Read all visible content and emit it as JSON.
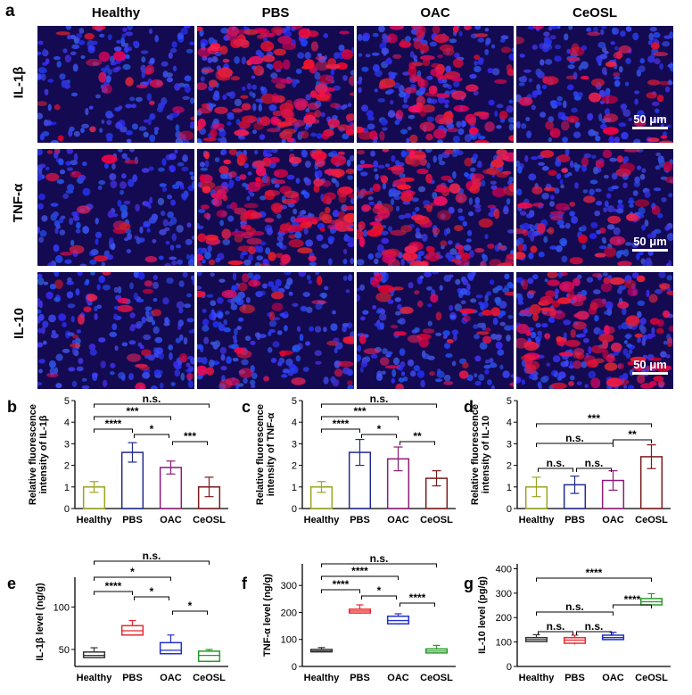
{
  "panel_letters": {
    "a": "a",
    "b": "b",
    "c": "c",
    "d": "d",
    "e": "e",
    "f": "f",
    "g": "g"
  },
  "groups": [
    "Healthy",
    "PBS",
    "OAC",
    "CeOSL"
  ],
  "markers": [
    "IL-1β",
    "TNF-α",
    "IL-10"
  ],
  "scale_bar": "50 μm",
  "microscopy_intensity": {
    "IL-1β": [
      0.15,
      0.85,
      0.55,
      0.25
    ],
    "TNF-α": [
      0.1,
      0.85,
      0.75,
      0.3
    ],
    "IL-10": [
      0.15,
      0.2,
      0.25,
      0.75
    ]
  },
  "colors": {
    "Healthy": "#9aa61f",
    "PBS": "#1f2b8c",
    "OAC": "#8b1a7a",
    "CeOSL": "#7a1a1a",
    "box_Healthy": "#333333",
    "box_PBS": "#e8292e",
    "box_OAC": "#2130c8",
    "box_CeOSL": "#2a9a2a"
  },
  "chart_data": [
    {
      "panel": "b",
      "type": "bar",
      "categories": [
        "Healthy",
        "PBS",
        "OAC",
        "CeOSL"
      ],
      "values": [
        1.0,
        2.6,
        1.9,
        1.0
      ],
      "errors": [
        0.25,
        0.45,
        0.3,
        0.45
      ],
      "ylabel": "Relative fluorescence intensity of IL-1β",
      "ylim": [
        0,
        5
      ],
      "yticks": [
        "0",
        "1",
        "2",
        "3",
        "4",
        "5"
      ],
      "significance": [
        {
          "from": 0,
          "to": 3,
          "label": "n.s."
        },
        {
          "from": 0,
          "to": 2,
          "label": "***"
        },
        {
          "from": 0,
          "to": 1,
          "label": "****"
        },
        {
          "from": 1,
          "to": 2,
          "label": "*"
        },
        {
          "from": 2,
          "to": 3,
          "label": "***"
        }
      ]
    },
    {
      "panel": "c",
      "type": "bar",
      "categories": [
        "Healthy",
        "PBS",
        "OAC",
        "CeOSL"
      ],
      "values": [
        1.0,
        2.6,
        2.3,
        1.4
      ],
      "errors": [
        0.25,
        0.6,
        0.55,
        0.35
      ],
      "ylabel": "Relative fluorescence intensity of TNF-α",
      "ylim": [
        0,
        5
      ],
      "yticks": [
        "0",
        "1",
        "2",
        "3",
        "4",
        "5"
      ],
      "significance": [
        {
          "from": 0,
          "to": 3,
          "label": "n.s."
        },
        {
          "from": 0,
          "to": 2,
          "label": "***"
        },
        {
          "from": 0,
          "to": 1,
          "label": "****"
        },
        {
          "from": 1,
          "to": 2,
          "label": "*"
        },
        {
          "from": 2,
          "to": 3,
          "label": "**"
        }
      ]
    },
    {
      "panel": "d",
      "type": "bar",
      "categories": [
        "Healthy",
        "PBS",
        "OAC",
        "CeOSL"
      ],
      "values": [
        1.0,
        1.1,
        1.3,
        2.4
      ],
      "errors": [
        0.45,
        0.4,
        0.45,
        0.55
      ],
      "ylabel": "Relative fluorescence intensity of IL-10",
      "ylim": [
        0,
        5
      ],
      "yticks": [
        "0",
        "1",
        "2",
        "3",
        "4",
        "5"
      ],
      "significance": [
        {
          "from": 0,
          "to": 3,
          "label": "***"
        },
        {
          "from": 0,
          "to": 2,
          "label": "n.s."
        },
        {
          "from": 2,
          "to": 3,
          "label": "**"
        },
        {
          "from": 0,
          "to": 1,
          "label": "n.s."
        },
        {
          "from": 1,
          "to": 2,
          "label": "n.s."
        }
      ]
    },
    {
      "panel": "e",
      "type": "box",
      "categories": [
        "Healthy",
        "PBS",
        "OAC",
        "CeOSL"
      ],
      "boxes": [
        {
          "min": 40,
          "q1": 40.5,
          "median": 43,
          "q3": 47,
          "max": 52
        },
        {
          "min": 67,
          "q1": 67,
          "median": 72,
          "q3": 78,
          "max": 84
        },
        {
          "min": 44,
          "q1": 45,
          "median": 49,
          "q3": 58,
          "max": 67
        },
        {
          "min": 35,
          "q1": 36,
          "median": 43,
          "q3": 48,
          "max": 50
        }
      ],
      "ylabel": "IL-1β level (ng/g)",
      "ylim": [
        30,
        135
      ],
      "yticks": [
        "50",
        "100"
      ],
      "ytick_values": [
        50,
        100
      ],
      "significance": [
        {
          "from": 0,
          "to": 3,
          "label": "n.s."
        },
        {
          "from": 0,
          "to": 2,
          "label": "*"
        },
        {
          "from": 0,
          "to": 1,
          "label": "****"
        },
        {
          "from": 1,
          "to": 2,
          "label": "*"
        },
        {
          "from": 2,
          "to": 3,
          "label": "*"
        }
      ]
    },
    {
      "panel": "f",
      "type": "box",
      "categories": [
        "Healthy",
        "PBS",
        "OAC",
        "CeOSL"
      ],
      "boxes": [
        {
          "min": 52,
          "q1": 54,
          "median": 57,
          "q3": 63,
          "max": 70
        },
        {
          "min": 195,
          "q1": 198,
          "median": 205,
          "q3": 212,
          "max": 228
        },
        {
          "min": 155,
          "q1": 158,
          "median": 170,
          "q3": 186,
          "max": 195
        },
        {
          "min": 48,
          "q1": 50,
          "median": 57,
          "q3": 65,
          "max": 78
        }
      ],
      "ylabel": "TNF-α level (ng/g)",
      "ylim": [
        0,
        380
      ],
      "yticks": [
        "0",
        "100",
        "200",
        "300"
      ],
      "ytick_values": [
        0,
        100,
        200,
        300
      ],
      "significance": [
        {
          "from": 0,
          "to": 3,
          "label": "n.s."
        },
        {
          "from": 0,
          "to": 2,
          "label": "****"
        },
        {
          "from": 0,
          "to": 1,
          "label": "****"
        },
        {
          "from": 1,
          "to": 2,
          "label": "*"
        },
        {
          "from": 2,
          "to": 3,
          "label": "****"
        }
      ]
    },
    {
      "panel": "g",
      "type": "box",
      "categories": [
        "Healthy",
        "PBS",
        "OAC",
        "CeOSL"
      ],
      "boxes": [
        {
          "min": 100,
          "q1": 102,
          "median": 110,
          "q3": 118,
          "max": 130
        },
        {
          "min": 90,
          "q1": 95,
          "median": 108,
          "q3": 118,
          "max": 128
        },
        {
          "min": 110,
          "q1": 110,
          "median": 118,
          "q3": 128,
          "max": 140
        },
        {
          "min": 250,
          "q1": 252,
          "median": 265,
          "q3": 278,
          "max": 298
        }
      ],
      "ylabel": "IL-10 level (pg/g)",
      "ylim": [
        0,
        420
      ],
      "yticks": [
        "0",
        "100",
        "200",
        "300",
        "400"
      ],
      "ytick_values": [
        0,
        100,
        200,
        300,
        400
      ],
      "significance": [
        {
          "from": 0,
          "to": 3,
          "label": "****"
        },
        {
          "from": 0,
          "to": 2,
          "label": "n.s."
        },
        {
          "from": 2,
          "to": 3,
          "label": "****"
        },
        {
          "from": 0,
          "to": 1,
          "label": "n.s."
        },
        {
          "from": 1,
          "to": 2,
          "label": "n.s."
        }
      ]
    }
  ]
}
